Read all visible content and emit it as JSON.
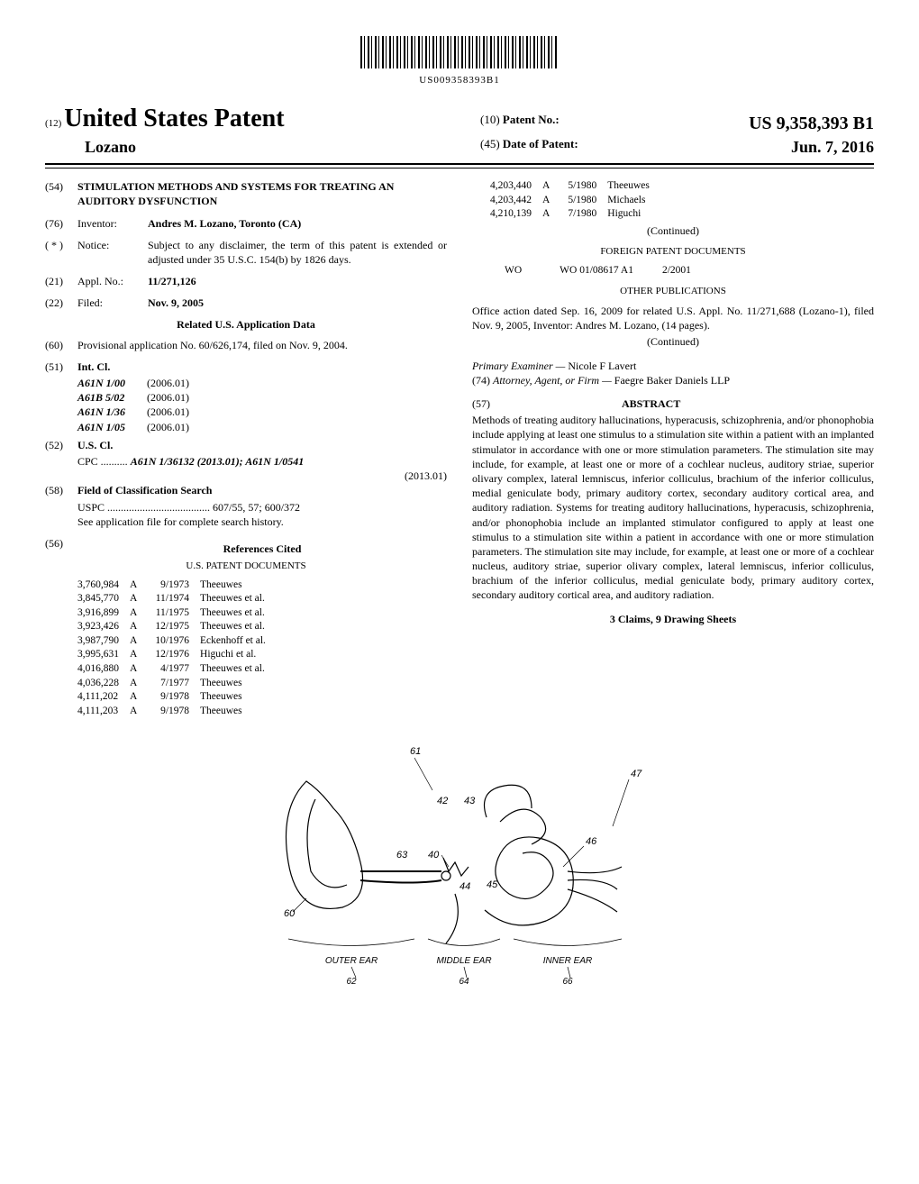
{
  "barcode_text": "US009358393B1",
  "heading": {
    "prefix_num": "(12)",
    "country_title": "United States Patent",
    "author": "Lozano",
    "patent_no_prefix": "(10)",
    "patent_no_label": "Patent No.:",
    "patent_no_value": "US 9,358,393 B1",
    "date_prefix": "(45)",
    "date_label": "Date of Patent:",
    "date_value": "Jun. 7, 2016"
  },
  "fields": {
    "title_num": "(54)",
    "title_text": "STIMULATION METHODS AND SYSTEMS FOR TREATING AN AUDITORY DYSFUNCTION",
    "inventor_num": "(76)",
    "inventor_label": "Inventor:",
    "inventor_value": "Andres M. Lozano, Toronto (CA)",
    "notice_num": "( * )",
    "notice_label": "Notice:",
    "notice_text": "Subject to any disclaimer, the term of this patent is extended or adjusted under 35 U.S.C. 154(b) by 1826 days.",
    "appl_num": "(21)",
    "appl_label": "Appl. No.:",
    "appl_value": "11/271,126",
    "filed_num": "(22)",
    "filed_label": "Filed:",
    "filed_value": "Nov. 9, 2005",
    "related_heading": "Related U.S. Application Data",
    "prov_num": "(60)",
    "prov_text": "Provisional application No. 60/626,174, filed on Nov. 9, 2004.",
    "intcl_num": "(51)",
    "intcl_label": "Int. Cl.",
    "intcl": [
      {
        "code": "A61N 1/00",
        "ver": "(2006.01)"
      },
      {
        "code": "A61B 5/02",
        "ver": "(2006.01)"
      },
      {
        "code": "A61N 1/36",
        "ver": "(2006.01)"
      },
      {
        "code": "A61N 1/05",
        "ver": "(2006.01)"
      }
    ],
    "uscl_num": "(52)",
    "uscl_label": "U.S. Cl.",
    "cpc_label": "CPC ..........",
    "cpc_text_1": "A61N 1/36132 (2013.01); ",
    "cpc_text_2": "A61N 1/0541",
    "cpc_text_3": "(2013.01)",
    "focs_num": "(58)",
    "focs_label": "Field of Classification Search",
    "uspc_label": "USPC ......................................",
    "uspc_value": "607/55, 57; 600/372",
    "focs_note": "See application file for complete search history.",
    "refs_num": "(56)",
    "refs_label": "References Cited",
    "us_patent_docs_label": "U.S. PATENT DOCUMENTS",
    "us_refs": [
      {
        "no": "3,760,984",
        "k": "A",
        "date": "9/1973",
        "name": "Theeuwes"
      },
      {
        "no": "3,845,770",
        "k": "A",
        "date": "11/1974",
        "name": "Theeuwes et al."
      },
      {
        "no": "3,916,899",
        "k": "A",
        "date": "11/1975",
        "name": "Theeuwes et al."
      },
      {
        "no": "3,923,426",
        "k": "A",
        "date": "12/1975",
        "name": "Theeuwes et al."
      },
      {
        "no": "3,987,790",
        "k": "A",
        "date": "10/1976",
        "name": "Eckenhoff et al."
      },
      {
        "no": "3,995,631",
        "k": "A",
        "date": "12/1976",
        "name": "Higuchi et al."
      },
      {
        "no": "4,016,880",
        "k": "A",
        "date": "4/1977",
        "name": "Theeuwes et al."
      },
      {
        "no": "4,036,228",
        "k": "A",
        "date": "7/1977",
        "name": "Theeuwes"
      },
      {
        "no": "4,111,202",
        "k": "A",
        "date": "9/1978",
        "name": "Theeuwes"
      },
      {
        "no": "4,111,203",
        "k": "A",
        "date": "9/1978",
        "name": "Theeuwes"
      }
    ]
  },
  "rightcol": {
    "us_refs_top": [
      {
        "no": "4,203,440",
        "k": "A",
        "date": "5/1980",
        "name": "Theeuwes"
      },
      {
        "no": "4,203,442",
        "k": "A",
        "date": "5/1980",
        "name": "Michaels"
      },
      {
        "no": "4,210,139",
        "k": "A",
        "date": "7/1980",
        "name": "Higuchi"
      }
    ],
    "continued": "(Continued)",
    "foreign_heading": "FOREIGN PATENT DOCUMENTS",
    "foreign_ref": {
      "cc": "WO",
      "no": "WO 01/08617 A1",
      "date": "2/2001"
    },
    "other_heading": "OTHER PUBLICATIONS",
    "other_text": "Office action dated Sep. 16, 2009 for related U.S. Appl. No. 11/271,688 (Lozano-1), filed Nov. 9, 2005, Inventor: Andres M. Lozano, (14 pages).",
    "examiner_label": "Primary Examiner —",
    "examiner_value": "Nicole F Lavert",
    "attorney_num": "(74)",
    "attorney_label": "Attorney, Agent, or Firm —",
    "attorney_value": "Faegre Baker Daniels LLP",
    "abstract_num": "(57)",
    "abstract_label": "ABSTRACT",
    "abstract_text": "Methods of treating auditory hallucinations, hyperacusis, schizophrenia, and/or phonophobia include applying at least one stimulus to a stimulation site within a patient with an implanted stimulator in accordance with one or more stimulation parameters. The stimulation site may include, for example, at least one or more of a cochlear nucleus, auditory striae, superior olivary complex, lateral lemniscus, inferior colliculus, brachium of the inferior colliculus, medial geniculate body, primary auditory cortex, secondary auditory cortical area, and auditory radiation. Systems for treating auditory hallucinations, hyperacusis, schizophrenia, and/or phonophobia include an implanted stimulator configured to apply at least one stimulus to a stimulation site within a patient in accordance with one or more stimulation parameters. The stimulation site may include, for example, at least one or more of a cochlear nucleus, auditory striae, superior olivary complex, lateral lemniscus, inferior colliculus, brachium of the inferior colliculus, medial geniculate body, primary auditory cortex, secondary auditory cortical area, and auditory radiation.",
    "claims_line": "3 Claims, 9 Drawing Sheets"
  },
  "figure": {
    "callouts": [
      "61",
      "47",
      "42",
      "43",
      "63",
      "40",
      "44",
      "45",
      "46",
      "60"
    ],
    "region_labels": [
      "OUTER EAR",
      "MIDDLE EAR",
      "INNER EAR"
    ],
    "region_nums": [
      "62",
      "64",
      "66"
    ]
  }
}
